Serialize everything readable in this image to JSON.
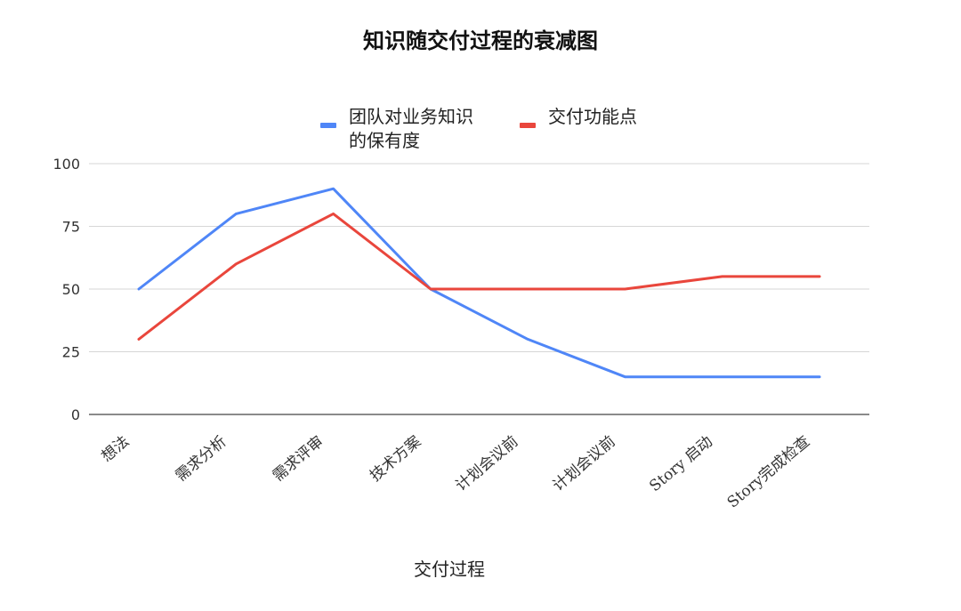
{
  "chart_data": {
    "type": "line",
    "title": "知识随交付过程的衰减图",
    "xlabel": "交付过程",
    "ylabel": "",
    "categories": [
      "想法",
      "需求分析",
      "需求评审",
      "技术方案",
      "计划会议前",
      "计划会议前",
      "Story 启动",
      "Story完成检查"
    ],
    "ylim": [
      0,
      100
    ],
    "yticks": [
      0,
      25,
      50,
      75,
      100
    ],
    "grid": true,
    "legend_position": "top",
    "series": [
      {
        "name": "团队对业务知识的保有度",
        "color": "#4f86f7",
        "values": [
          50,
          80,
          90,
          50,
          30,
          15,
          15,
          15
        ]
      },
      {
        "name": "交付功能点",
        "color": "#e9463c",
        "values": [
          30,
          60,
          80,
          50,
          50,
          50,
          55,
          55
        ]
      }
    ]
  }
}
